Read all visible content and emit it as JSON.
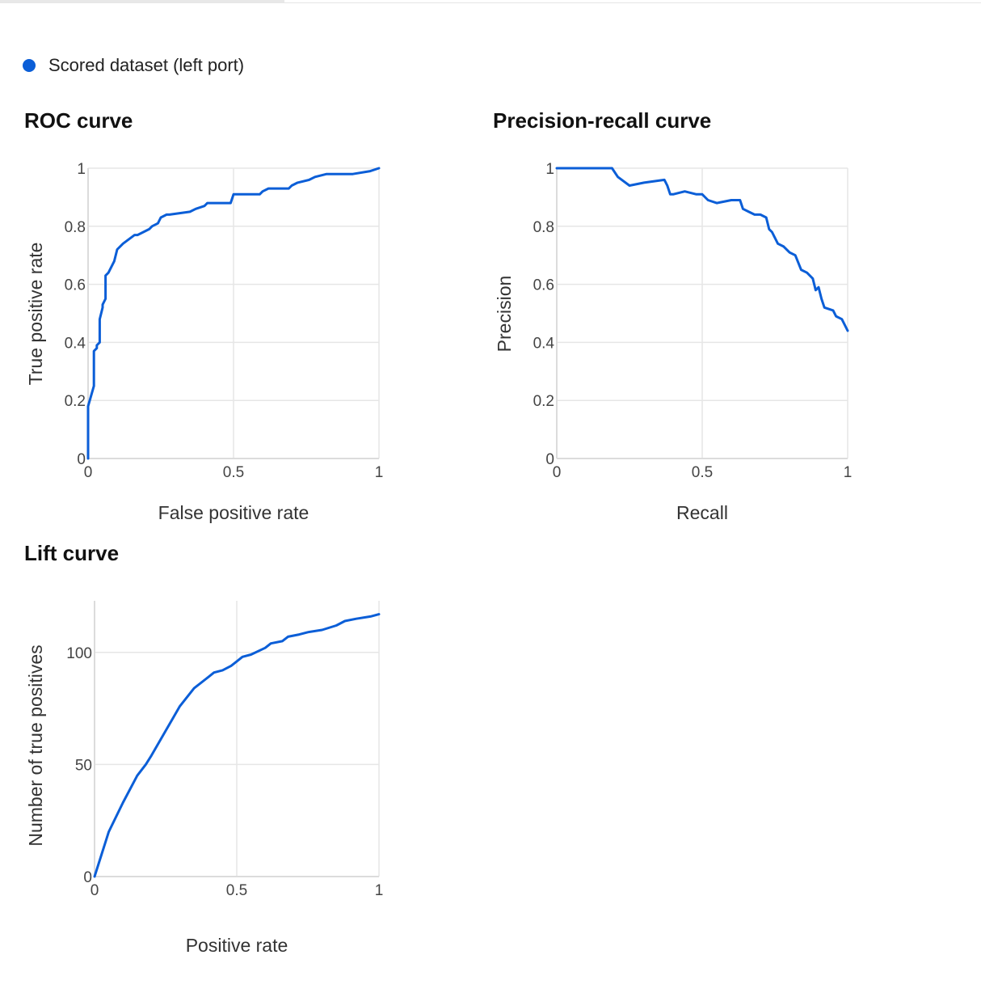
{
  "legend": {
    "label": "Scored dataset (left port)",
    "color": "#0b5ed7"
  },
  "chart_data": [
    {
      "type": "line",
      "title": "ROC curve",
      "xlabel": "False positive rate",
      "ylabel": "True positive rate",
      "xlim": [
        0,
        1
      ],
      "ylim": [
        0,
        1
      ],
      "xticks": [
        0,
        0.5,
        1
      ],
      "xtick_labels": [
        "0",
        "0.5",
        "1"
      ],
      "yticks": [
        0,
        0.2,
        0.4,
        0.6,
        0.8,
        1
      ],
      "ytick_labels": [
        "0",
        "0.2",
        "0.4",
        "0.6",
        "0.8",
        "1"
      ],
      "grid": true,
      "series": [
        {
          "name": "Scored dataset (left port)",
          "color": "#0b5ed7",
          "x": [
            0,
            0,
            0.02,
            0.02,
            0.03,
            0.03,
            0.04,
            0.04,
            0.05,
            0.05,
            0.06,
            0.06,
            0.07,
            0.08,
            0.09,
            0.1,
            0.11,
            0.12,
            0.16,
            0.17,
            0.21,
            0.22,
            0.24,
            0.25,
            0.27,
            0.28,
            0.35,
            0.37,
            0.4,
            0.41,
            0.49,
            0.5,
            0.59,
            0.6,
            0.62,
            0.69,
            0.7,
            0.72,
            0.76,
            0.78,
            0.82,
            0.86,
            0.91,
            0.97,
            1
          ],
          "y": [
            0,
            0.18,
            0.25,
            0.37,
            0.38,
            0.39,
            0.4,
            0.48,
            0.52,
            0.53,
            0.55,
            0.63,
            0.64,
            0.66,
            0.68,
            0.72,
            0.73,
            0.74,
            0.77,
            0.77,
            0.79,
            0.8,
            0.81,
            0.83,
            0.84,
            0.84,
            0.85,
            0.86,
            0.87,
            0.88,
            0.88,
            0.91,
            0.91,
            0.92,
            0.93,
            0.93,
            0.94,
            0.95,
            0.96,
            0.97,
            0.98,
            0.98,
            0.98,
            0.99,
            1
          ]
        }
      ]
    },
    {
      "type": "line",
      "title": "Precision-recall curve",
      "xlabel": "Recall",
      "ylabel": "Precision",
      "xlim": [
        0,
        1
      ],
      "ylim": [
        0,
        1
      ],
      "xticks": [
        0,
        0.5,
        1
      ],
      "xtick_labels": [
        "0",
        "0.5",
        "1"
      ],
      "yticks": [
        0,
        0.2,
        0.4,
        0.6,
        0.8,
        1
      ],
      "ytick_labels": [
        "0",
        "0.2",
        "0.4",
        "0.6",
        "0.8",
        "1"
      ],
      "grid": true,
      "series": [
        {
          "name": "Scored dataset (left port)",
          "color": "#0b5ed7",
          "x": [
            0,
            0.19,
            0.21,
            0.25,
            0.3,
            0.37,
            0.38,
            0.39,
            0.4,
            0.44,
            0.48,
            0.5,
            0.52,
            0.55,
            0.6,
            0.63,
            0.64,
            0.66,
            0.68,
            0.7,
            0.72,
            0.73,
            0.74,
            0.76,
            0.78,
            0.8,
            0.82,
            0.84,
            0.86,
            0.88,
            0.89,
            0.9,
            0.91,
            0.92,
            0.95,
            0.96,
            0.98,
            1
          ],
          "y": [
            1,
            1,
            0.97,
            0.94,
            0.95,
            0.96,
            0.94,
            0.91,
            0.91,
            0.92,
            0.91,
            0.91,
            0.89,
            0.88,
            0.89,
            0.89,
            0.86,
            0.85,
            0.84,
            0.84,
            0.83,
            0.79,
            0.78,
            0.74,
            0.73,
            0.71,
            0.7,
            0.65,
            0.64,
            0.62,
            0.58,
            0.59,
            0.55,
            0.52,
            0.51,
            0.49,
            0.48,
            0.44
          ]
        }
      ]
    },
    {
      "type": "line",
      "title": "Lift curve",
      "xlabel": "Positive rate",
      "ylabel": "Number of true positives",
      "xlim": [
        0,
        1
      ],
      "ylim": [
        0,
        123
      ],
      "xticks": [
        0,
        0.5,
        1
      ],
      "xtick_labels": [
        "0",
        "0.5",
        "1"
      ],
      "yticks": [
        0,
        50,
        100
      ],
      "ytick_labels": [
        "0",
        "50",
        "100"
      ],
      "grid": true,
      "series": [
        {
          "name": "Scored dataset (left port)",
          "color": "#0b5ed7",
          "x": [
            0,
            0.05,
            0.1,
            0.15,
            0.18,
            0.2,
            0.25,
            0.3,
            0.35,
            0.4,
            0.42,
            0.45,
            0.48,
            0.5,
            0.52,
            0.55,
            0.6,
            0.62,
            0.66,
            0.68,
            0.72,
            0.75,
            0.8,
            0.85,
            0.88,
            0.92,
            0.97,
            1
          ],
          "y": [
            0,
            20,
            33,
            45,
            50,
            54,
            65,
            76,
            84,
            89,
            91,
            92,
            94,
            96,
            98,
            99,
            102,
            104,
            105,
            107,
            108,
            109,
            110,
            112,
            114,
            115,
            116,
            117
          ]
        }
      ]
    }
  ]
}
